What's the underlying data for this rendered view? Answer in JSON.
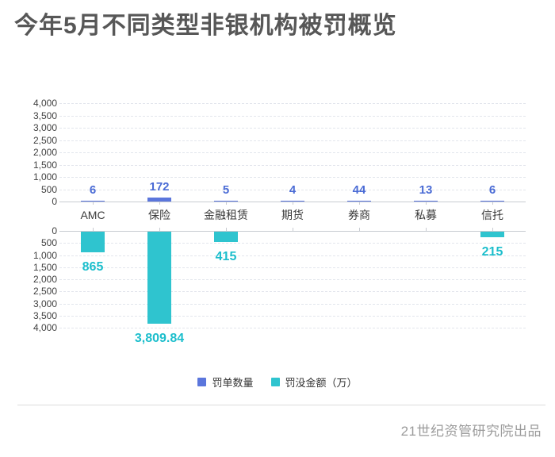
{
  "title": "今年5月不同类型非银机构被罚概览",
  "footer": "21世纪资管研究院出品",
  "colors": {
    "count_bar": "#5B76DC",
    "count_label": "#4A6BD5",
    "amount_bar": "#2FC4CF",
    "amount_label": "#1CBECC",
    "axis_text": "#404040",
    "category_text": "#3a3a3a",
    "grid_line": "#e2e5ec",
    "axis_line": "#c8cbd1",
    "title_text": "#575757",
    "footer_text": "#9b9b9b"
  },
  "legend": [
    {
      "name": "count",
      "label": "罚单数量",
      "color": "#5B76DC"
    },
    {
      "name": "amount",
      "label": "罚没金额（万）",
      "color": "#2FC4CF"
    }
  ],
  "chart_data": {
    "type": "bar",
    "title": "今年5月不同类型非银机构被罚概览",
    "categories": [
      "AMC",
      "保险",
      "金融租赁",
      "期货",
      "券商",
      "私募",
      "信托"
    ],
    "series": [
      {
        "name": "罚单数量",
        "direction": "up",
        "values": [
          6,
          172,
          5,
          4,
          44,
          13,
          6
        ],
        "labels": [
          "6",
          "172",
          "5",
          "4",
          "44",
          "13",
          "6"
        ]
      },
      {
        "name": "罚没金额（万）",
        "direction": "down",
        "values": [
          865,
          3809.84,
          415,
          null,
          null,
          null,
          215
        ],
        "labels": [
          "865",
          "3,809.84",
          "415",
          "",
          "",
          "",
          "215"
        ]
      }
    ],
    "y_axis_top_ticks": [
      "0",
      "500",
      "1,000",
      "1,500",
      "2,000",
      "2,500",
      "3,000",
      "3,500",
      "4,000"
    ],
    "y_axis_bottom_ticks": [
      "0",
      "500",
      "1,000",
      "1,500",
      "2,000",
      "2,500",
      "3,000",
      "3,500",
      "4,000"
    ],
    "ylim": [
      0,
      4000
    ],
    "tick_step": 500,
    "grid": true,
    "legend_position": "bottom"
  }
}
